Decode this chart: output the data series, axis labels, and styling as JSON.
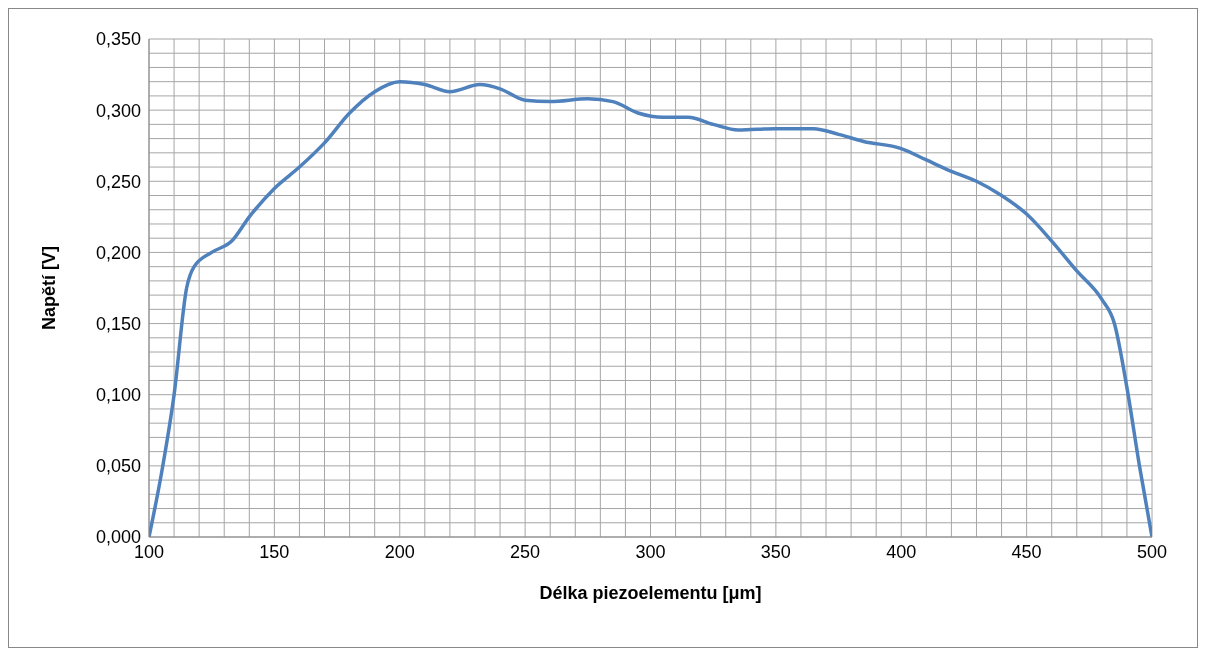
{
  "chart_data": {
    "type": "line",
    "xlabel": "Délka piezoelementu [μm]",
    "ylabel": "Napětí [V]",
    "grid": true,
    "legend": false,
    "marker": "none",
    "line_style": "solid",
    "xlim": [
      100,
      500
    ],
    "xticks": [
      100,
      {
        "value": 110,
        "label": null
      },
      {
        "value": 120,
        "label": null
      },
      {
        "value": 130,
        "label": null
      },
      {
        "value": 140,
        "label": null
      },
      150,
      {
        "value": 160,
        "label": null
      },
      {
        "value": 170,
        "label": null
      },
      {
        "value": 180,
        "label": null
      },
      {
        "value": 190,
        "label": null
      },
      200,
      {
        "value": 210,
        "label": null
      },
      {
        "value": 220,
        "label": null
      },
      {
        "value": 230,
        "label": null
      },
      {
        "value": 240,
        "label": null
      },
      250,
      {
        "value": 260,
        "label": null
      },
      {
        "value": 270,
        "label": null
      },
      {
        "value": 280,
        "label": null
      },
      {
        "value": 290,
        "label": null
      },
      300,
      {
        "value": 310,
        "label": null
      },
      {
        "value": 320,
        "label": null
      },
      {
        "value": 330,
        "label": null
      },
      {
        "value": 340,
        "label": null
      },
      350,
      {
        "value": 360,
        "label": null
      },
      {
        "value": 370,
        "label": null
      },
      {
        "value": 380,
        "label": null
      },
      {
        "value": 390,
        "label": null
      },
      400,
      {
        "value": 410,
        "label": null
      },
      {
        "value": 420,
        "label": null
      },
      {
        "value": 430,
        "label": null
      },
      {
        "value": 440,
        "label": null
      },
      450,
      {
        "value": 460,
        "label": null
      },
      {
        "value": 470,
        "label": null
      },
      {
        "value": 480,
        "label": null
      },
      {
        "value": 490,
        "label": null
      },
      500
    ],
    "ylim": [
      0,
      0.35
    ],
    "yticks": [
      {
        "value": 0,
        "label": "0,000"
      },
      {
        "value": 0.01,
        "label": null
      },
      {
        "value": 0.02,
        "label": null
      },
      {
        "value": 0.03,
        "label": null
      },
      {
        "value": 0.04,
        "label": null
      },
      {
        "value": 0.05,
        "label": "0,050"
      },
      {
        "value": 0.06,
        "label": null
      },
      {
        "value": 0.07,
        "label": null
      },
      {
        "value": 0.08,
        "label": null
      },
      {
        "value": 0.09,
        "label": null
      },
      {
        "value": 0.1,
        "label": "0,100"
      },
      {
        "value": 0.11,
        "label": null
      },
      {
        "value": 0.12,
        "label": null
      },
      {
        "value": 0.13,
        "label": null
      },
      {
        "value": 0.14,
        "label": null
      },
      {
        "value": 0.15,
        "label": "0,150"
      },
      {
        "value": 0.16,
        "label": null
      },
      {
        "value": 0.17,
        "label": null
      },
      {
        "value": 0.18,
        "label": null
      },
      {
        "value": 0.19,
        "label": null
      },
      {
        "value": 0.2,
        "label": "0,200"
      },
      {
        "value": 0.21,
        "label": null
      },
      {
        "value": 0.22,
        "label": null
      },
      {
        "value": 0.23,
        "label": null
      },
      {
        "value": 0.24,
        "label": null
      },
      {
        "value": 0.25,
        "label": "0,250"
      },
      {
        "value": 0.26,
        "label": null
      },
      {
        "value": 0.27,
        "label": null
      },
      {
        "value": 0.28,
        "label": null
      },
      {
        "value": 0.29,
        "label": null
      },
      {
        "value": 0.3,
        "label": "0,300"
      },
      {
        "value": 0.31,
        "label": null
      },
      {
        "value": 0.32,
        "label": null
      },
      {
        "value": 0.33,
        "label": null
      },
      {
        "value": 0.34,
        "label": null
      },
      {
        "value": 0.35,
        "label": "0,350"
      }
    ],
    "x": [
      100,
      105,
      110,
      115,
      118,
      125,
      133,
      140,
      150,
      160,
      170,
      180,
      190,
      200,
      210,
      220,
      232,
      240,
      250,
      260,
      275,
      285,
      295,
      305,
      315,
      325,
      335,
      350,
      365,
      375,
      385,
      400,
      410,
      420,
      430,
      440,
      450,
      460,
      470,
      480,
      485,
      490,
      495,
      500
    ],
    "series": [
      {
        "color": "#4f81bd",
        "values": [
          0,
          0.045,
          0.1,
          0.175,
          0.19,
          0.2,
          0.208,
          0.225,
          0.245,
          0.26,
          0.277,
          0.298,
          0.313,
          0.32,
          0.318,
          0.313,
          0.318,
          0.315,
          0.307,
          0.306,
          0.308,
          0.306,
          0.298,
          0.295,
          0.295,
          0.29,
          0.286,
          0.287,
          0.287,
          0.283,
          0.278,
          0.273,
          0.265,
          0.257,
          0.25,
          0.24,
          0.227,
          0.208,
          0.187,
          0.167,
          0.15,
          0.105,
          0.05,
          0
        ]
      }
    ]
  }
}
